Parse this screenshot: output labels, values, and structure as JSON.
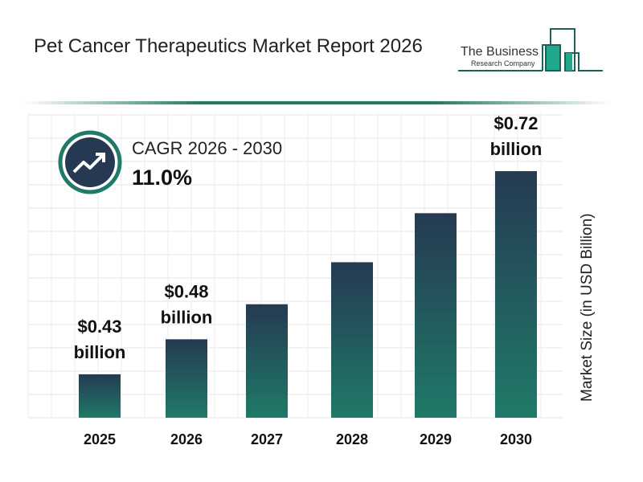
{
  "header": {
    "title": "Pet Cancer Therapeutics Market Report 2026"
  },
  "logo": {
    "line1": "The Business",
    "line2": "Research Company"
  },
  "cagr": {
    "label": "CAGR 2026 - 2030",
    "value": "11.0%",
    "icon": "trending-up-icon"
  },
  "colors": {
    "bar_top": "#253a52",
    "bar_bottom": "#1f7a68",
    "accent": "#1f7a68"
  },
  "chart_data": {
    "type": "bar",
    "categories": [
      "2025",
      "2026",
      "2027",
      "2028",
      "2029",
      "2030"
    ],
    "values": [
      0.43,
      0.48,
      0.53,
      0.59,
      0.66,
      0.72
    ],
    "data_labels": [
      {
        "index": 0,
        "value": "$0.43",
        "unit": "billion"
      },
      {
        "index": 1,
        "value": "$0.48",
        "unit": "billion"
      },
      {
        "index": 5,
        "value": "$0.72",
        "unit": "billion"
      }
    ],
    "ylabel": "Market Size (in USD Billion)",
    "grid": true
  }
}
